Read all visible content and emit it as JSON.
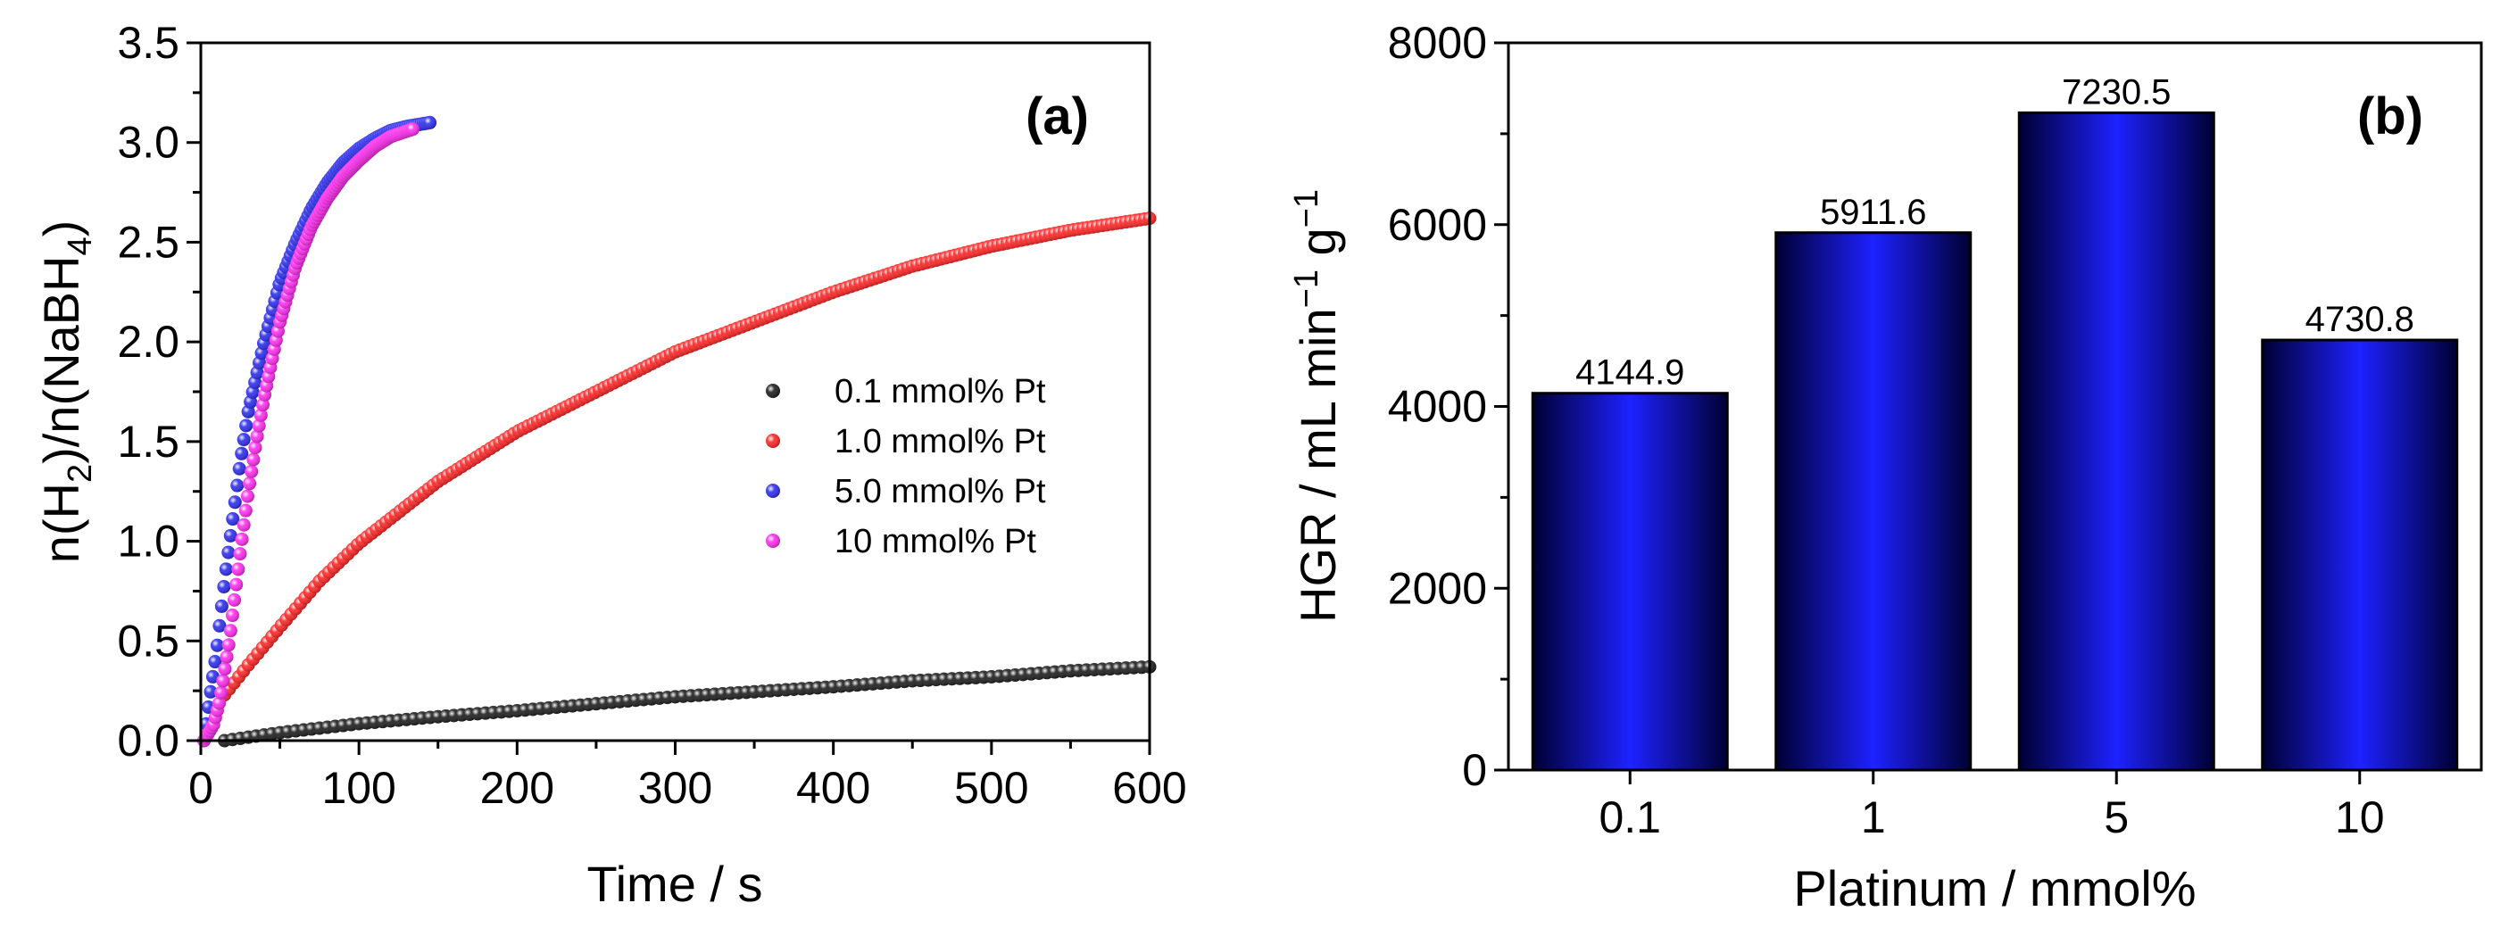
{
  "figure": {
    "panels": [
      "(a)",
      "(b)"
    ]
  },
  "colors": {
    "black_series": "#111111",
    "red_series": "#ff1a1a",
    "blue_series": "#2222ee",
    "magenta_series": "#ff22ee",
    "bar_dark": "#000033",
    "bar_bright": "#1e22ff"
  },
  "chart_data": [
    {
      "type": "scatter",
      "panel_label": "(a)",
      "xlabel": "Time / s",
      "ylabel_parts": [
        "n(H",
        "2",
        ")/n(NaBH",
        "4",
        ")"
      ],
      "xlim": [
        0,
        600
      ],
      "ylim": [
        0,
        3.5
      ],
      "xticks": [
        0,
        100,
        200,
        300,
        400,
        500,
        600
      ],
      "yticks": [
        0.0,
        0.5,
        1.0,
        1.5,
        2.0,
        2.5,
        3.0,
        3.5
      ],
      "ytick_labels": [
        "0.0",
        "0.5",
        "1.0",
        "1.5",
        "2.0",
        "2.5",
        "3.0",
        "3.5"
      ],
      "legend_position": "center-right",
      "series": [
        {
          "name": "0.1 mmol% Pt",
          "color_key": "black_series",
          "marker": "sphere",
          "x_start": 15,
          "x_end": 600,
          "x_step": 5,
          "points": [
            [
              15,
              0.0
            ],
            [
              50,
              0.04
            ],
            [
              100,
              0.085
            ],
            [
              150,
              0.12
            ],
            [
              200,
              0.15
            ],
            [
              250,
              0.185
            ],
            [
              300,
              0.22
            ],
            [
              350,
              0.245
            ],
            [
              400,
              0.27
            ],
            [
              450,
              0.3
            ],
            [
              500,
              0.32
            ],
            [
              550,
              0.35
            ],
            [
              600,
              0.37
            ]
          ]
        },
        {
          "name": "1.0 mmol% Pt",
          "color_key": "red_series",
          "marker": "sphere",
          "x_start": 15,
          "x_end": 600,
          "x_step": 3,
          "points": [
            [
              15,
              0.23
            ],
            [
              30,
              0.38
            ],
            [
              50,
              0.57
            ],
            [
              75,
              0.8
            ],
            [
              100,
              0.99
            ],
            [
              150,
              1.3
            ],
            [
              200,
              1.55
            ],
            [
              250,
              1.75
            ],
            [
              300,
              1.95
            ],
            [
              350,
              2.1
            ],
            [
              400,
              2.25
            ],
            [
              450,
              2.38
            ],
            [
              500,
              2.48
            ],
            [
              550,
              2.56
            ],
            [
              600,
              2.62
            ]
          ]
        },
        {
          "name": "5.0 mmol% Pt",
          "color_key": "blue_series",
          "marker": "sphere",
          "x_start": 2,
          "x_end": 145,
          "x_step": 1.4,
          "points": [
            [
              2,
              0.0
            ],
            [
              5,
              0.18
            ],
            [
              10,
              0.45
            ],
            [
              15,
              0.8
            ],
            [
              20,
              1.1
            ],
            [
              25,
              1.4
            ],
            [
              30,
              1.65
            ],
            [
              40,
              2.0
            ],
            [
              50,
              2.3
            ],
            [
              60,
              2.5
            ],
            [
              70,
              2.67
            ],
            [
              80,
              2.8
            ],
            [
              90,
              2.9
            ],
            [
              100,
              2.97
            ],
            [
              110,
              3.02
            ],
            [
              120,
              3.06
            ],
            [
              130,
              3.08
            ],
            [
              145,
              3.1
            ]
          ]
        },
        {
          "name": "10 mmol% Pt",
          "color_key": "magenta_series",
          "marker": "sphere",
          "x_start": 2,
          "x_end": 135,
          "x_step": 1.2,
          "points": [
            [
              2,
              0.0
            ],
            [
              8,
              0.08
            ],
            [
              12,
              0.2
            ],
            [
              18,
              0.5
            ],
            [
              25,
              0.95
            ],
            [
              30,
              1.25
            ],
            [
              35,
              1.5
            ],
            [
              40,
              1.72
            ],
            [
              50,
              2.1
            ],
            [
              60,
              2.38
            ],
            [
              70,
              2.58
            ],
            [
              80,
              2.72
            ],
            [
              90,
              2.83
            ],
            [
              100,
              2.91
            ],
            [
              110,
              2.98
            ],
            [
              120,
              3.03
            ],
            [
              135,
              3.07
            ]
          ]
        }
      ]
    },
    {
      "type": "bar",
      "panel_label": "(b)",
      "xlabel": "Platinum / mmol%",
      "ylabel_parts": [
        "HGR / mL min",
        "−1",
        " g",
        "−1"
      ],
      "categories": [
        "0.1",
        "1",
        "5",
        "10"
      ],
      "values": [
        4144.9,
        5911.6,
        7230.5,
        4730.8
      ],
      "value_labels": [
        "4144.9",
        "5911.6",
        "7230.5",
        "4730.8"
      ],
      "ylim": [
        0,
        8000
      ],
      "yticks": [
        0,
        2000,
        4000,
        6000,
        8000
      ],
      "ytick_labels": [
        "0",
        "2000",
        "4000",
        "6000",
        "8000"
      ]
    }
  ]
}
